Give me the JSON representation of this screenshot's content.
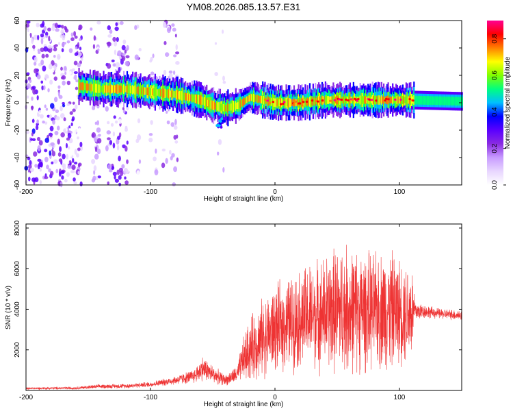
{
  "title": "YM08.2026.085.13.57.E31",
  "colors": {
    "snr_line": "#ee3333",
    "colormap": [
      "#ffffff",
      "#e8d6ff",
      "#c89cff",
      "#8a2be2",
      "#5a00ff",
      "#0000ff",
      "#00bfff",
      "#00ff80",
      "#80ff00",
      "#ffff00",
      "#ff8000",
      "#ff0000",
      "#ff0090"
    ]
  },
  "chart_data": [
    {
      "type": "heatmap",
      "title": "YM08.2026.085.13.57.E31",
      "xlabel": "Height of straight line (km)",
      "ylabel": "Frequency (Hz)",
      "xlim": [
        -200,
        150
      ],
      "ylim": [
        -60,
        60
      ],
      "xticks": [
        "-200",
        "-100",
        "0",
        "100"
      ],
      "yticks": [
        "60",
        "40",
        "20",
        "0",
        "-20",
        "-40",
        "-60"
      ],
      "colorbar": {
        "label": "Normalized spectral amplitude",
        "range": [
          0,
          0.9
        ],
        "ticks": [
          "0.0",
          "0.2",
          "0.4",
          "0.6",
          "0.8"
        ]
      },
      "ridge": {
        "height_km": [
          -155,
          -140,
          -120,
          -100,
          -80,
          -60,
          -50,
          -40,
          -30,
          -20,
          -10,
          0,
          20,
          40,
          60,
          80,
          100,
          110,
          150
        ],
        "frequency_hz": [
          12,
          10,
          10,
          8,
          6,
          2,
          -2,
          -4,
          -2,
          4,
          2,
          0,
          0,
          2,
          2,
          2,
          2,
          2,
          1
        ]
      }
    },
    {
      "type": "line",
      "xlabel": "Height of straight line (km)",
      "ylabel": "SNR (10 * v/v)",
      "xlim": [
        -200,
        150
      ],
      "ylim": [
        0,
        8200
      ],
      "xticks": [
        "-200",
        "-100",
        "0",
        "100"
      ],
      "yticks": [
        "8000",
        "6000",
        "4000",
        "2000"
      ],
      "envelope": {
        "height_km": [
          -200,
          -160,
          -140,
          -120,
          -100,
          -80,
          -65,
          -58,
          -50,
          -40,
          -30,
          -26,
          -20,
          -10,
          0,
          10,
          20,
          30,
          40,
          50,
          60,
          70,
          80,
          90,
          100,
          110,
          113,
          120,
          130,
          150
        ],
        "snr_mean": [
          100,
          120,
          200,
          220,
          300,
          500,
          700,
          1100,
          800,
          500,
          800,
          1500,
          2000,
          2600,
          3000,
          3300,
          3500,
          3700,
          3800,
          4000,
          4000,
          3900,
          3900,
          4000,
          3900,
          3900,
          3900,
          3900,
          3800,
          3700
        ],
        "snr_spread": [
          60,
          80,
          120,
          130,
          150,
          250,
          400,
          700,
          500,
          300,
          500,
          1200,
          1800,
          2200,
          2400,
          2600,
          2800,
          3000,
          3200,
          3600,
          3600,
          3400,
          3200,
          3500,
          3000,
          2800,
          600,
          400,
          300,
          300
        ]
      },
      "series": [
        {
          "values_ref": "envelope"
        }
      ]
    }
  ]
}
